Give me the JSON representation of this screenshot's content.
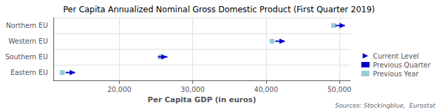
{
  "chart_data": {
    "type": "scatter",
    "orientation": "horizontal",
    "title": "Per Capita Annualized Nominal Gross Domestic Product (First Quarter 2019)",
    "xlabel": "Per Capita GDP (in euros)",
    "annotations": [
      "Sources: Stockingblue,  Eurostat"
    ],
    "categories": [
      "Northern EU",
      "Western EU",
      "Southern EU",
      "Eastern EU"
    ],
    "series": [
      {
        "name": "Current Level",
        "color": "#0000CC",
        "marker": "triangle-right",
        "values": [
          50400,
          42200,
          26100,
          13600
        ]
      },
      {
        "name": "Previous Quarter",
        "color": "#0000CC",
        "marker": "dash",
        "values": [
          50100,
          41900,
          25900,
          13300
        ]
      },
      {
        "name": "Previous Year",
        "color": "#99CCDD",
        "marker": "square",
        "values": [
          49200,
          40800,
          25600,
          12200
        ]
      }
    ],
    "xlim": [
      11000,
      51500
    ],
    "xticks": [
      {
        "value": 20000,
        "label": "20,000"
      },
      {
        "value": 30000,
        "label": "30,000"
      },
      {
        "value": 40000,
        "label": "40,000"
      },
      {
        "value": 50000,
        "label": "50,000"
      }
    ],
    "grid": true,
    "legend": "lower right"
  }
}
